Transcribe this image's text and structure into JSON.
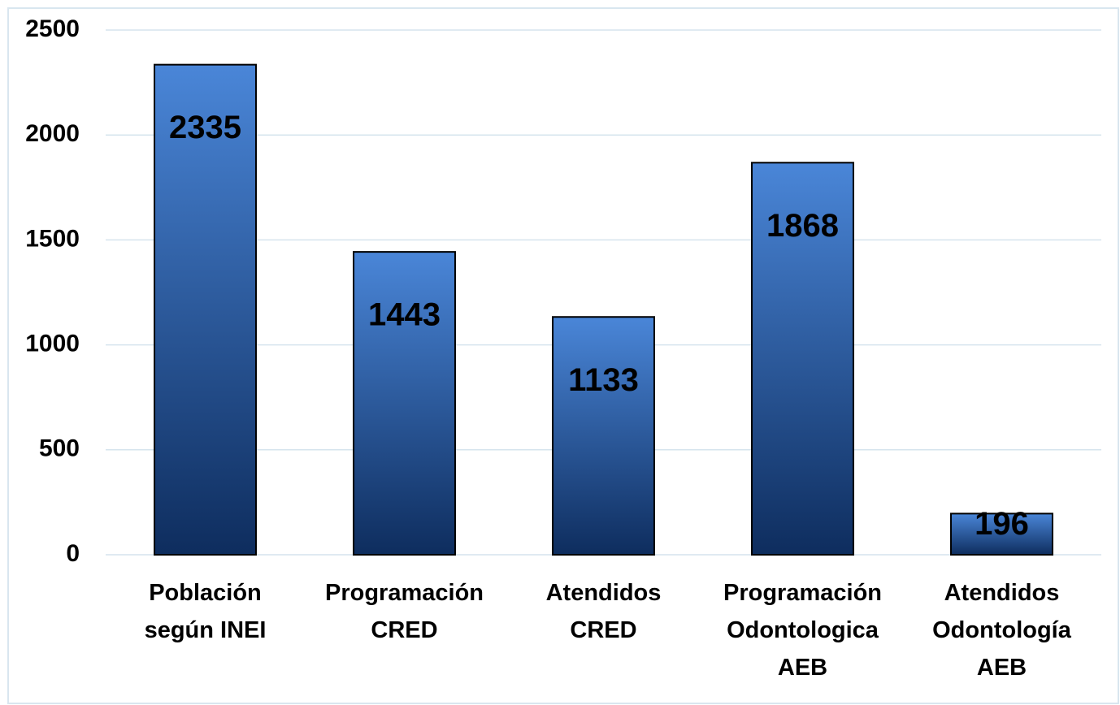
{
  "chart_data": {
    "type": "bar",
    "categories": [
      "Población\nsegún INEI",
      "Programación\nCRED",
      "Atendidos\nCRED",
      "Programación\nOdontologica\nAEB",
      "Atendidos\nOdontología\nAEB"
    ],
    "values": [
      2335,
      1443,
      1133,
      1868,
      196
    ],
    "color": "#2a5fae",
    "ylim": [
      0,
      2500
    ],
    "yticks": [
      0,
      500,
      1000,
      1500,
      2000,
      2500
    ],
    "grid": true
  }
}
